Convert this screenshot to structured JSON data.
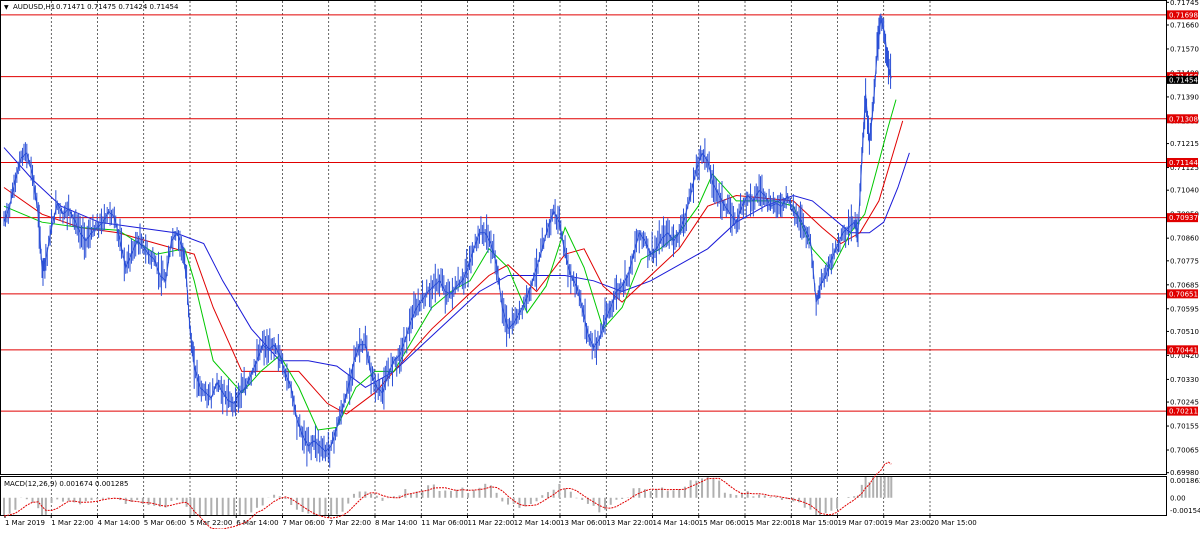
{
  "header": {
    "symbol": "AUDUSD,H1",
    "ohlc": "0.71471 0.71475 0.71424 0.71454"
  },
  "macd_panel": {
    "title": "MACD(12,26,9) 0.001674 0.001285"
  },
  "colors": {
    "price_line": "#2a4fd6",
    "ma_fast": "#00c800",
    "ma_mid": "#e00000",
    "ma_slow": "#1a1ad8",
    "level_line": "#e00000",
    "macd_hist": "#b0b0b0",
    "macd_signal": "#e00000",
    "grid": "#000000"
  },
  "chart_data": {
    "type": "line",
    "title": "AUDUSD,H1",
    "y_ticks": [
      0.71745,
      0.7166,
      0.7157,
      0.7148,
      0.7139,
      0.713,
      0.71215,
      0.71125,
      0.7104,
      0.7095,
      0.7086,
      0.70775,
      0.70685,
      0.70595,
      0.7051,
      0.7042,
      0.7033,
      0.70245,
      0.70155,
      0.70065,
      0.6998
    ],
    "y_tick_labels": [
      "0.71745",
      "0.71660",
      "0.71570",
      "0.71480",
      "0.71390",
      "0.71300",
      "0.71215",
      "0.71125",
      "0.71040",
      "0.70950",
      "0.70860",
      "0.70775",
      "0.70685",
      "0.70595",
      "0.70510",
      "0.70420",
      "0.70330",
      "0.70245",
      "0.70155",
      "0.70065",
      "0.69980"
    ],
    "ylim": [
      0.69975,
      0.7175
    ],
    "x_labels": [
      "1 Mar 2019",
      "1 Mar 22:00",
      "4 Mar 14:00",
      "5 Mar 06:00",
      "5 Mar 22:00",
      "6 Mar 14:00",
      "7 Mar 06:00",
      "7 Mar 22:00",
      "8 Mar 14:00",
      "11 Mar 06:00",
      "11 Mar 22:00",
      "12 Mar 14:00",
      "13 Mar 06:00",
      "13 Mar 22:00",
      "14 Mar 14:00",
      "15 Mar 06:00",
      "15 Mar 22:00",
      "18 Mar 15:00",
      "19 Mar 07:00",
      "19 Mar 23:00",
      "20 Mar 15:00"
    ],
    "levels": [
      {
        "label": "0.71698",
        "value": 0.71698
      },
      {
        "label": "0.71466",
        "value": 0.71466
      },
      {
        "label": "0.71308",
        "value": 0.71308
      },
      {
        "label": "0.71144",
        "value": 0.71144
      },
      {
        "label": "0.70937",
        "value": 0.70937
      },
      {
        "label": "0.70651",
        "value": 0.70651
      },
      {
        "label": "0.70441",
        "value": 0.70441
      },
      {
        "label": "0.70211",
        "value": 0.70211
      }
    ],
    "current_price": {
      "label": "0.71454",
      "value": 0.71454
    },
    "price": [
      [
        0,
        0.7092
      ],
      [
        6,
        0.7098
      ],
      [
        12,
        0.7108
      ],
      [
        18,
        0.7116
      ],
      [
        24,
        0.7118
      ],
      [
        30,
        0.711
      ],
      [
        36,
        0.7095
      ],
      [
        40,
        0.7075
      ],
      [
        44,
        0.7078
      ],
      [
        50,
        0.709
      ],
      [
        56,
        0.7099
      ],
      [
        62,
        0.7095
      ],
      [
        68,
        0.7097
      ],
      [
        74,
        0.7093
      ],
      [
        80,
        0.7088
      ],
      [
        86,
        0.7085
      ],
      [
        92,
        0.7088
      ],
      [
        98,
        0.709
      ],
      [
        104,
        0.7092
      ],
      [
        110,
        0.7096
      ],
      [
        116,
        0.7094
      ],
      [
        122,
        0.7085
      ],
      [
        128,
        0.7075
      ],
      [
        134,
        0.708
      ],
      [
        140,
        0.7085
      ],
      [
        146,
        0.7083
      ],
      [
        152,
        0.708
      ],
      [
        158,
        0.7078
      ],
      [
        164,
        0.7072
      ],
      [
        170,
        0.707
      ],
      [
        176,
        0.7085
      ],
      [
        182,
        0.7088
      ],
      [
        188,
        0.7082
      ],
      [
        192,
        0.707
      ],
      [
        196,
        0.705
      ],
      [
        200,
        0.7038
      ],
      [
        206,
        0.703
      ],
      [
        212,
        0.7028
      ],
      [
        218,
        0.7026
      ],
      [
        224,
        0.7032
      ],
      [
        230,
        0.7028
      ],
      [
        236,
        0.7025
      ],
      [
        242,
        0.7024
      ],
      [
        248,
        0.7028
      ],
      [
        254,
        0.703
      ],
      [
        260,
        0.7035
      ],
      [
        266,
        0.704
      ],
      [
        272,
        0.7046
      ],
      [
        278,
        0.7044
      ],
      [
        284,
        0.7046
      ],
      [
        290,
        0.7042
      ],
      [
        296,
        0.7035
      ],
      [
        302,
        0.703
      ],
      [
        308,
        0.7018
      ],
      [
        314,
        0.7012
      ],
      [
        320,
        0.7008
      ],
      [
        326,
        0.701
      ],
      [
        332,
        0.7008
      ],
      [
        338,
        0.7006
      ],
      [
        344,
        0.7008
      ],
      [
        350,
        0.7015
      ],
      [
        356,
        0.7022
      ],
      [
        362,
        0.703
      ],
      [
        368,
        0.704
      ],
      [
        374,
        0.7046
      ],
      [
        380,
        0.7046
      ],
      [
        386,
        0.7035
      ],
      [
        392,
        0.703
      ],
      [
        398,
        0.7028
      ],
      [
        404,
        0.7035
      ],
      [
        410,
        0.704
      ],
      [
        416,
        0.7042
      ],
      [
        422,
        0.7048
      ],
      [
        428,
        0.7055
      ],
      [
        434,
        0.706
      ],
      [
        440,
        0.7063
      ],
      [
        446,
        0.7066
      ],
      [
        452,
        0.7068
      ],
      [
        458,
        0.707
      ],
      [
        464,
        0.7066
      ],
      [
        470,
        0.7065
      ],
      [
        476,
        0.7068
      ],
      [
        482,
        0.707
      ],
      [
        488,
        0.7075
      ],
      [
        494,
        0.7082
      ],
      [
        500,
        0.7088
      ],
      [
        506,
        0.7088
      ],
      [
        512,
        0.7084
      ],
      [
        518,
        0.7076
      ],
      [
        524,
        0.706
      ],
      [
        530,
        0.7052
      ],
      [
        536,
        0.7054
      ],
      [
        542,
        0.7058
      ],
      [
        548,
        0.7062
      ],
      [
        554,
        0.7068
      ],
      [
        560,
        0.7075
      ],
      [
        566,
        0.7082
      ],
      [
        572,
        0.709
      ],
      [
        578,
        0.7096
      ],
      [
        584,
        0.7092
      ],
      [
        590,
        0.708
      ],
      [
        596,
        0.7072
      ],
      [
        602,
        0.7068
      ],
      [
        608,
        0.706
      ],
      [
        614,
        0.705
      ],
      [
        620,
        0.7045
      ],
      [
        626,
        0.7048
      ],
      [
        632,
        0.7055
      ],
      [
        638,
        0.706
      ],
      [
        644,
        0.7066
      ],
      [
        650,
        0.7068
      ],
      [
        656,
        0.7072
      ],
      [
        662,
        0.708
      ],
      [
        668,
        0.7088
      ],
      [
        674,
        0.7085
      ],
      [
        680,
        0.708
      ],
      [
        686,
        0.7082
      ],
      [
        692,
        0.7086
      ],
      [
        698,
        0.7088
      ],
      [
        704,
        0.7085
      ],
      [
        710,
        0.7088
      ],
      [
        716,
        0.7094
      ],
      [
        722,
        0.7102
      ],
      [
        728,
        0.7112
      ],
      [
        734,
        0.7118
      ],
      [
        740,
        0.7115
      ],
      [
        746,
        0.7106
      ],
      [
        752,
        0.7102
      ],
      [
        758,
        0.7098
      ],
      [
        764,
        0.7095
      ],
      [
        770,
        0.7092
      ],
      [
        776,
        0.7098
      ],
      [
        782,
        0.7102
      ],
      [
        788,
        0.71
      ],
      [
        794,
        0.7104
      ],
      [
        800,
        0.7102
      ],
      [
        806,
        0.7098
      ],
      [
        812,
        0.7099
      ],
      [
        818,
        0.7098
      ],
      [
        824,
        0.7102
      ],
      [
        830,
        0.7096
      ],
      [
        836,
        0.7094
      ],
      [
        842,
        0.709
      ],
      [
        848,
        0.7085
      ],
      [
        854,
        0.7062
      ],
      [
        858,
        0.7068
      ],
      [
        864,
        0.7072
      ],
      [
        870,
        0.7078
      ],
      [
        876,
        0.7083
      ],
      [
        882,
        0.7088
      ],
      [
        888,
        0.709
      ],
      [
        894,
        0.7092
      ],
      [
        898,
        0.7088
      ],
      [
        902,
        0.7115
      ],
      [
        906,
        0.714
      ],
      [
        910,
        0.7122
      ],
      [
        914,
        0.7135
      ],
      [
        918,
        0.7155
      ],
      [
        922,
        0.7168
      ],
      [
        926,
        0.7163
      ],
      [
        930,
        0.715
      ],
      [
        933,
        0.7146
      ]
    ],
    "ma_fast": [
      [
        0,
        0.7098
      ],
      [
        40,
        0.7092
      ],
      [
        80,
        0.709
      ],
      [
        120,
        0.7089
      ],
      [
        160,
        0.708
      ],
      [
        190,
        0.7082
      ],
      [
        200,
        0.707
      ],
      [
        220,
        0.704
      ],
      [
        250,
        0.7028
      ],
      [
        270,
        0.7036
      ],
      [
        290,
        0.7042
      ],
      [
        310,
        0.703
      ],
      [
        330,
        0.7014
      ],
      [
        350,
        0.7015
      ],
      [
        370,
        0.703
      ],
      [
        390,
        0.7036
      ],
      [
        410,
        0.7036
      ],
      [
        430,
        0.7048
      ],
      [
        450,
        0.706
      ],
      [
        470,
        0.7066
      ],
      [
        490,
        0.707
      ],
      [
        510,
        0.7082
      ],
      [
        530,
        0.7075
      ],
      [
        550,
        0.7058
      ],
      [
        570,
        0.7068
      ],
      [
        590,
        0.709
      ],
      [
        610,
        0.7075
      ],
      [
        630,
        0.7052
      ],
      [
        650,
        0.706
      ],
      [
        670,
        0.7078
      ],
      [
        690,
        0.7082
      ],
      [
        710,
        0.7088
      ],
      [
        730,
        0.7098
      ],
      [
        745,
        0.711
      ],
      [
        770,
        0.71
      ],
      [
        790,
        0.71
      ],
      [
        810,
        0.71
      ],
      [
        830,
        0.7098
      ],
      [
        850,
        0.7082
      ],
      [
        870,
        0.7074
      ],
      [
        890,
        0.7088
      ],
      [
        905,
        0.7095
      ],
      [
        918,
        0.7112
      ],
      [
        930,
        0.7128
      ],
      [
        938,
        0.7138
      ]
    ],
    "ma_mid": [
      [
        0,
        0.7105
      ],
      [
        40,
        0.7095
      ],
      [
        80,
        0.709
      ],
      [
        120,
        0.7088
      ],
      [
        160,
        0.7084
      ],
      [
        200,
        0.708
      ],
      [
        220,
        0.706
      ],
      [
        250,
        0.7036
      ],
      [
        280,
        0.7036
      ],
      [
        310,
        0.7036
      ],
      [
        340,
        0.7024
      ],
      [
        360,
        0.702
      ],
      [
        390,
        0.7028
      ],
      [
        420,
        0.704
      ],
      [
        450,
        0.7052
      ],
      [
        480,
        0.7062
      ],
      [
        510,
        0.7072
      ],
      [
        530,
        0.7076
      ],
      [
        560,
        0.7066
      ],
      [
        590,
        0.708
      ],
      [
        610,
        0.7082
      ],
      [
        630,
        0.7068
      ],
      [
        650,
        0.7062
      ],
      [
        680,
        0.7072
      ],
      [
        710,
        0.7082
      ],
      [
        740,
        0.7098
      ],
      [
        770,
        0.7102
      ],
      [
        800,
        0.7101
      ],
      [
        830,
        0.71
      ],
      [
        860,
        0.709
      ],
      [
        880,
        0.7084
      ],
      [
        900,
        0.7088
      ],
      [
        920,
        0.71
      ],
      [
        935,
        0.7118
      ],
      [
        945,
        0.713
      ]
    ],
    "ma_slow": [
      [
        0,
        0.712
      ],
      [
        30,
        0.7108
      ],
      [
        60,
        0.7098
      ],
      [
        100,
        0.7092
      ],
      [
        140,
        0.709
      ],
      [
        180,
        0.7088
      ],
      [
        210,
        0.7084
      ],
      [
        230,
        0.707
      ],
      [
        260,
        0.7052
      ],
      [
        290,
        0.704
      ],
      [
        320,
        0.704
      ],
      [
        350,
        0.7038
      ],
      [
        380,
        0.703
      ],
      [
        410,
        0.7036
      ],
      [
        440,
        0.7046
      ],
      [
        470,
        0.7056
      ],
      [
        500,
        0.7066
      ],
      [
        530,
        0.7072
      ],
      [
        560,
        0.7072
      ],
      [
        590,
        0.7072
      ],
      [
        620,
        0.707
      ],
      [
        650,
        0.7066
      ],
      [
        680,
        0.707
      ],
      [
        710,
        0.7076
      ],
      [
        740,
        0.7082
      ],
      [
        770,
        0.7092
      ],
      [
        800,
        0.7098
      ],
      [
        830,
        0.7102
      ],
      [
        850,
        0.71
      ],
      [
        870,
        0.7094
      ],
      [
        890,
        0.7088
      ],
      [
        910,
        0.7088
      ],
      [
        925,
        0.7092
      ],
      [
        940,
        0.7105
      ],
      [
        952,
        0.7118
      ]
    ],
    "macd_ticks": [
      0.001862,
      0.0,
      -0.001546
    ],
    "macd_tick_labels": [
      "0.001862",
      "0.00",
      "-0.001546"
    ]
  }
}
